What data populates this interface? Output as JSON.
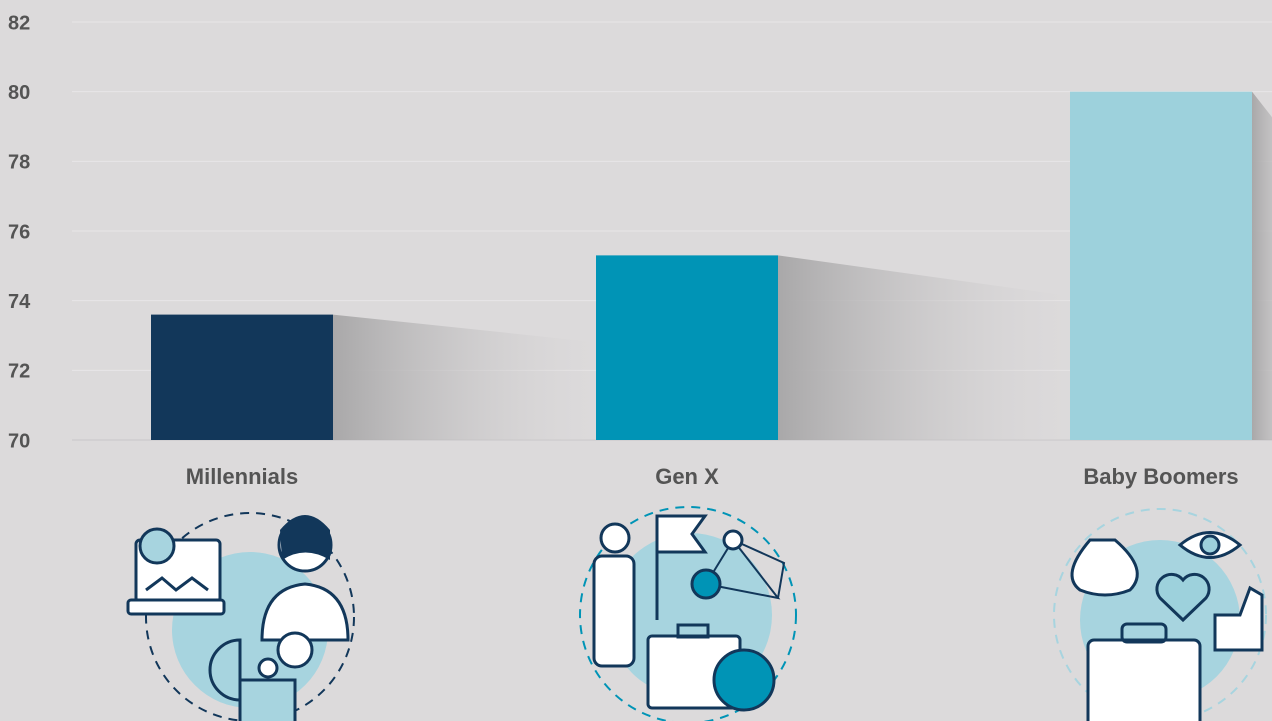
{
  "chart_data": {
    "type": "bar",
    "categories": [
      "Millennials",
      "Gen X",
      "Baby Boomers"
    ],
    "values": [
      73.6,
      75.3,
      80
    ],
    "colors": [
      "#12375a",
      "#0094b6",
      "#9dd1dc"
    ],
    "ylim": [
      70,
      82
    ],
    "yticks": [
      70,
      72,
      74,
      76,
      78,
      80,
      82
    ],
    "grid": true
  }
}
